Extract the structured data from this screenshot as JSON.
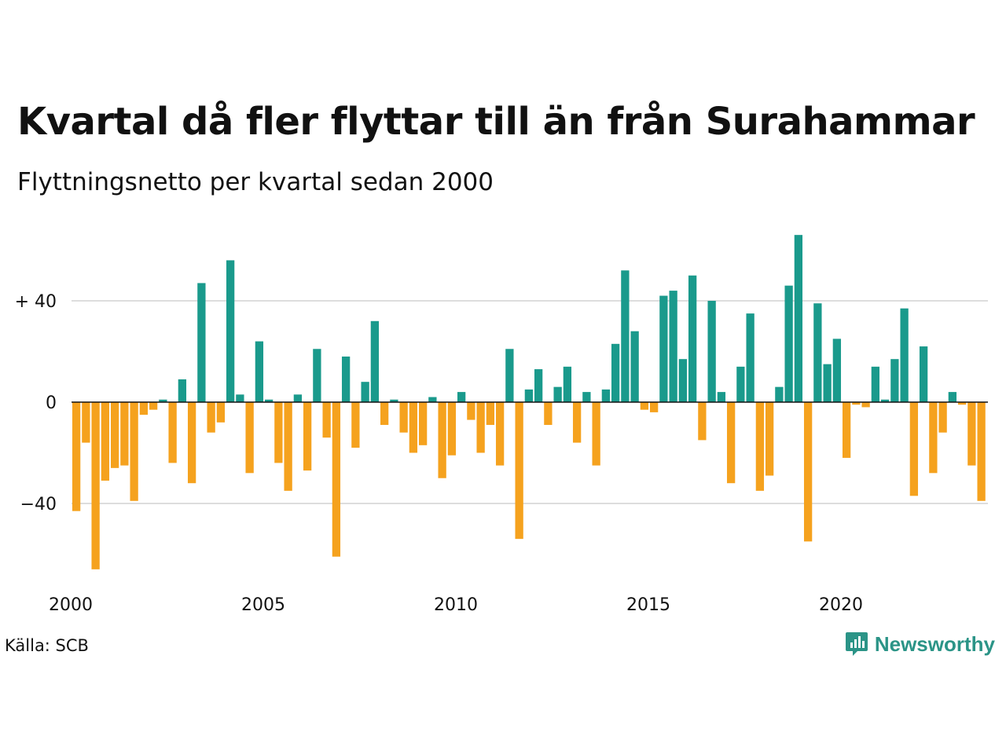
{
  "title": "Kvartal då fler flyttar till än från Surahammar",
  "subtitle": "Flyttningsnetto per kvartal sedan 2000",
  "source": "Källa: SCB",
  "brand": {
    "name": "Newsworthy",
    "color": "#2b9487",
    "icon": "newsworthy-logo-icon"
  },
  "colors": {
    "positive": "#1a9a8c",
    "negative": "#f5a21e",
    "grid": "#dddddd",
    "baseline": "#111111"
  },
  "chart_data": {
    "type": "bar",
    "xlabel": "",
    "ylabel": "",
    "ylim": [
      -68,
      66
    ],
    "y_ticks": [
      {
        "value": 40,
        "label": "+ 40"
      },
      {
        "value": 0,
        "label": "0"
      },
      {
        "value": -40,
        "label": "−40"
      }
    ],
    "x_ticks": [
      {
        "value": 2000,
        "label": "2000"
      },
      {
        "value": 2005,
        "label": "2005"
      },
      {
        "value": 2010,
        "label": "2010"
      },
      {
        "value": 2015,
        "label": "2015"
      },
      {
        "value": 2020,
        "label": "2020"
      }
    ],
    "grid": true,
    "start_year": 2000,
    "values": [
      -43,
      -16,
      -66,
      -31,
      -26,
      -25,
      -39,
      -5,
      -3,
      1,
      -24,
      9,
      -32,
      47,
      -12,
      -8,
      56,
      3,
      -28,
      24,
      1,
      -24,
      -35,
      3,
      -27,
      21,
      -14,
      -61,
      18,
      -18,
      8,
      32,
      -9,
      1,
      -12,
      -20,
      -17,
      2,
      -30,
      -21,
      4,
      -7,
      -20,
      -9,
      -25,
      21,
      -54,
      5,
      13,
      -9,
      6,
      14,
      -16,
      4,
      -25,
      5,
      23,
      52,
      28,
      -3,
      -4,
      42,
      44,
      17,
      50,
      -15,
      40,
      4,
      -32,
      14,
      35,
      -35,
      -29,
      6,
      46,
      66,
      -55,
      39,
      15,
      25,
      -22,
      -1,
      -2,
      14,
      1,
      17,
      37,
      -37,
      22,
      -28,
      -12,
      4,
      -1,
      -25,
      -39
    ]
  }
}
